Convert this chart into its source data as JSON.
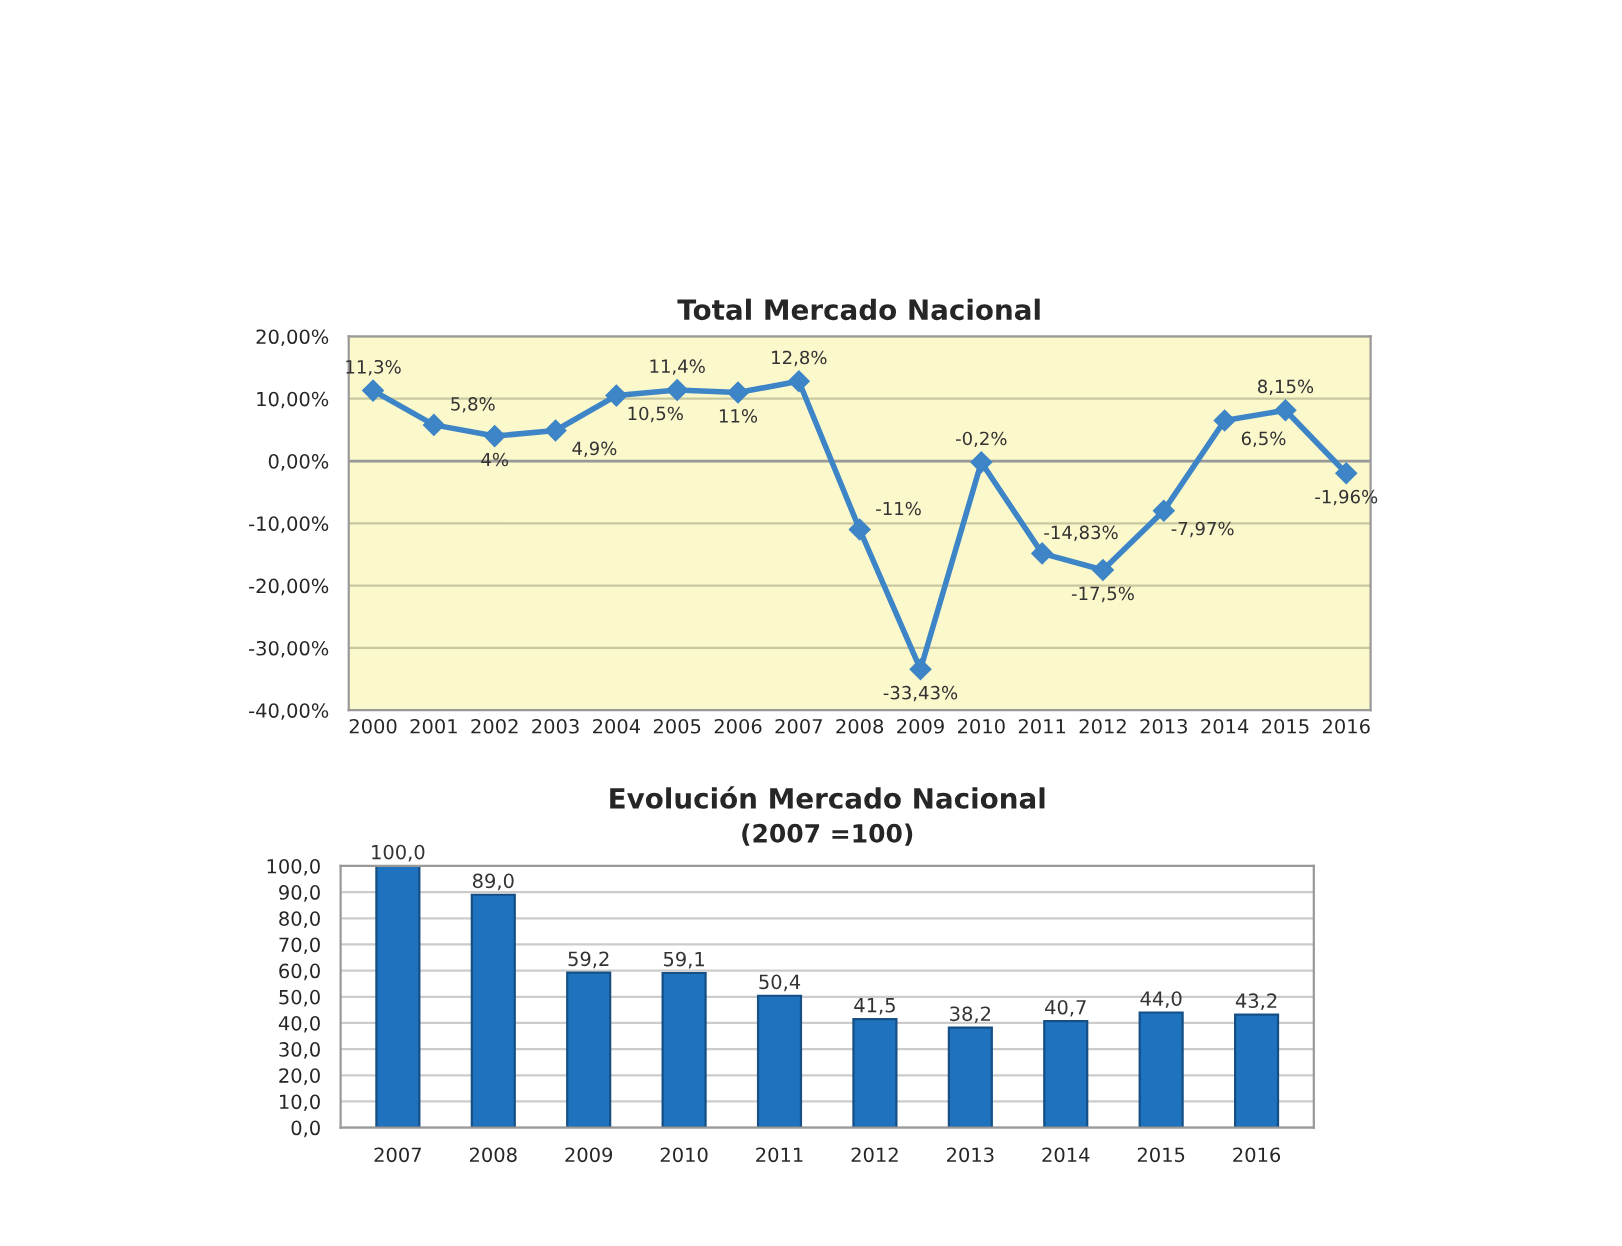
{
  "chart_data": [
    {
      "type": "line",
      "title": "Total Mercado Nacional",
      "categories": [
        "2000",
        "2001",
        "2002",
        "2003",
        "2004",
        "2005",
        "2006",
        "2007",
        "2008",
        "2009",
        "2010",
        "2011",
        "2012",
        "2013",
        "2014",
        "2015",
        "2016"
      ],
      "series": [
        {
          "color": "#3d85c6",
          "values": [
            11.3,
            5.8,
            4,
            4.9,
            10.5,
            11.4,
            11,
            12.8,
            -11,
            -33.43,
            -0.2,
            -14.83,
            -17.5,
            -7.97,
            6.5,
            8.15,
            -1.96
          ],
          "value_labels": [
            "11,3%",
            "5,8%",
            "4%",
            "4,9%",
            "10,5%",
            "11,4%",
            "11%",
            "12,8%",
            "-11%",
            "-33,43%",
            "-0,2%",
            "-14,83%",
            "-17,5%",
            "-7,97%",
            "6,5%",
            "8,15%",
            "-1,96%"
          ]
        }
      ],
      "ylim": [
        -40,
        20
      ],
      "yticks": [
        {
          "value": -40,
          "label": "-40,00%"
        },
        {
          "value": -30,
          "label": "-30,00%"
        },
        {
          "value": -20,
          "label": "-20,00%"
        },
        {
          "value": -10,
          "label": "-10,00%"
        },
        {
          "value": 0,
          "label": "0,00%"
        },
        {
          "value": 10,
          "label": "10,00%"
        },
        {
          "value": 20,
          "label": "20,00%"
        }
      ],
      "grid": "y",
      "marker": "diamond",
      "line_style": "solid"
    },
    {
      "type": "bar",
      "title": "Evolución Mercado Nacional",
      "subtitle": "(2007 =100)",
      "categories": [
        "2007",
        "2008",
        "2009",
        "2010",
        "2011",
        "2012",
        "2013",
        "2014",
        "2015",
        "2016"
      ],
      "series": [
        {
          "color": "#1f72bd",
          "values": [
            100.0,
            89.0,
            59.2,
            59.1,
            50.4,
            41.5,
            38.2,
            40.7,
            44.0,
            43.2
          ],
          "value_labels": [
            "100,0",
            "89,0",
            "59,2",
            "59,1",
            "50,4",
            "41,5",
            "38,2",
            "40,7",
            "44,0",
            "43,2"
          ]
        }
      ],
      "ylim": [
        0,
        100
      ],
      "yticks": [
        {
          "value": 0,
          "label": "0,0"
        },
        {
          "value": 10,
          "label": "10,0"
        },
        {
          "value": 20,
          "label": "20,0"
        },
        {
          "value": 30,
          "label": "30,0"
        },
        {
          "value": 40,
          "label": "40,0"
        },
        {
          "value": 50,
          "label": "50,0"
        },
        {
          "value": 60,
          "label": "60,0"
        },
        {
          "value": 70,
          "label": "70,0"
        },
        {
          "value": 80,
          "label": "80,0"
        },
        {
          "value": 90,
          "label": "90,0"
        },
        {
          "value": 100,
          "label": "100,0"
        }
      ],
      "grid": "y"
    }
  ]
}
